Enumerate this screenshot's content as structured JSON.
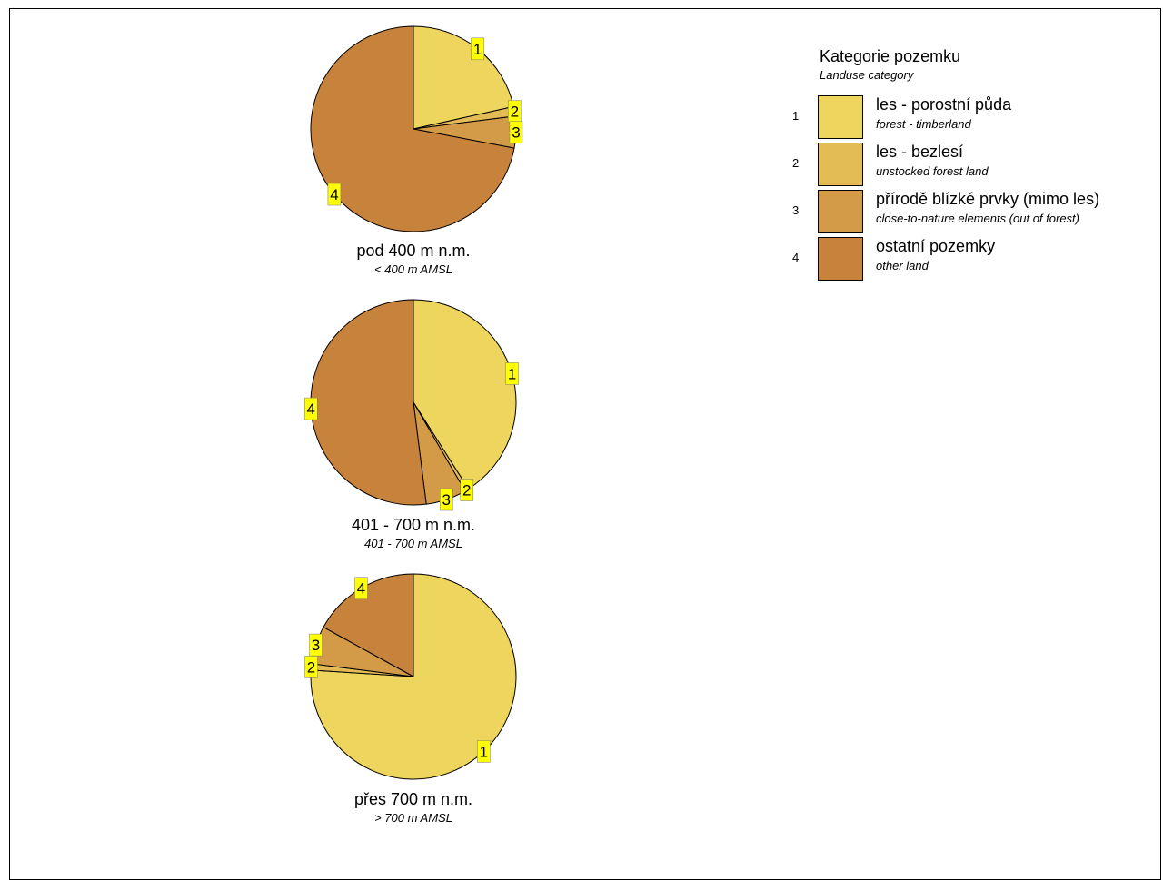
{
  "chart_data": [
    {
      "type": "pie",
      "caption": "pod 400 m n.m.",
      "caption_en": "< 400 m AMSL",
      "slices": [
        {
          "category": "1",
          "value": 21.5
        },
        {
          "category": "2",
          "value": 1.5
        },
        {
          "category": "3",
          "value": 5.0
        },
        {
          "category": "4",
          "value": 72.0
        }
      ]
    },
    {
      "type": "pie",
      "caption": "401 - 700 m n.m.",
      "caption_en": "401 - 700 m AMSL",
      "slices": [
        {
          "category": "1",
          "value": 41.0
        },
        {
          "category": "2",
          "value": 0.6
        },
        {
          "category": "3",
          "value": 6.4
        },
        {
          "category": "4",
          "value": 52.0
        }
      ]
    },
    {
      "type": "pie",
      "caption": "přes 700 m n.m.",
      "caption_en": "> 700 m AMSL",
      "slices": [
        {
          "category": "1",
          "value": 76.0
        },
        {
          "category": "2",
          "value": 1.0
        },
        {
          "category": "3",
          "value": 6.0
        },
        {
          "category": "4",
          "value": 17.0
        }
      ]
    }
  ],
  "legend": {
    "title": "Kategorie pozemku",
    "subtitle": "Landuse category",
    "items": [
      {
        "num": "1",
        "label": "les - porostní půda",
        "sublabel": "forest - timberland",
        "color": "#EDD55E"
      },
      {
        "num": "2",
        "label": "les - bezlesí",
        "sublabel": "unstocked forest land",
        "color": "#E4BC56"
      },
      {
        "num": "3",
        "label": "přírodě blízké prvky (mimo les)",
        "sublabel": "close-to-nature elements (out of forest)",
        "color": "#D39A47"
      },
      {
        "num": "4",
        "label": "ostatní pozemky",
        "sublabel": "other land",
        "color": "#C7823B"
      }
    ]
  },
  "label_style": {
    "fill": "#FFFF00"
  }
}
